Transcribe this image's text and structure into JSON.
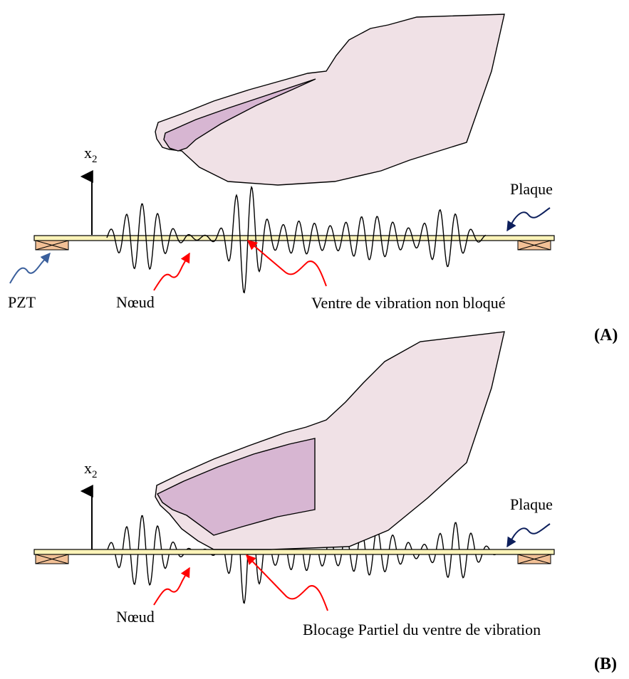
{
  "panel_a": {
    "tag": "(A)",
    "axis_label": "x",
    "axis_sub": "2",
    "plate_label": "Plaque",
    "pzt_label": "PZT",
    "node_label": "Nœud",
    "antinode_label": "Ventre de vibration non bloqué"
  },
  "panel_b": {
    "tag": "(B)",
    "axis_label": "x",
    "axis_sub": "2",
    "plate_label": "Plaque",
    "node_label": "Nœud",
    "antinode_label": "Blocage Partiel du ventre de vibration"
  },
  "colors": {
    "finger_fill": "#f0e1e6",
    "finger_nail": "#d7b6d2",
    "plate_fill": "#fbf3b8",
    "pzt_fill": "#f2c096",
    "red_arrow": "#ff0000",
    "blue_arrow": "#3a5f9c",
    "navy_arrow": "#0d1f5c"
  }
}
